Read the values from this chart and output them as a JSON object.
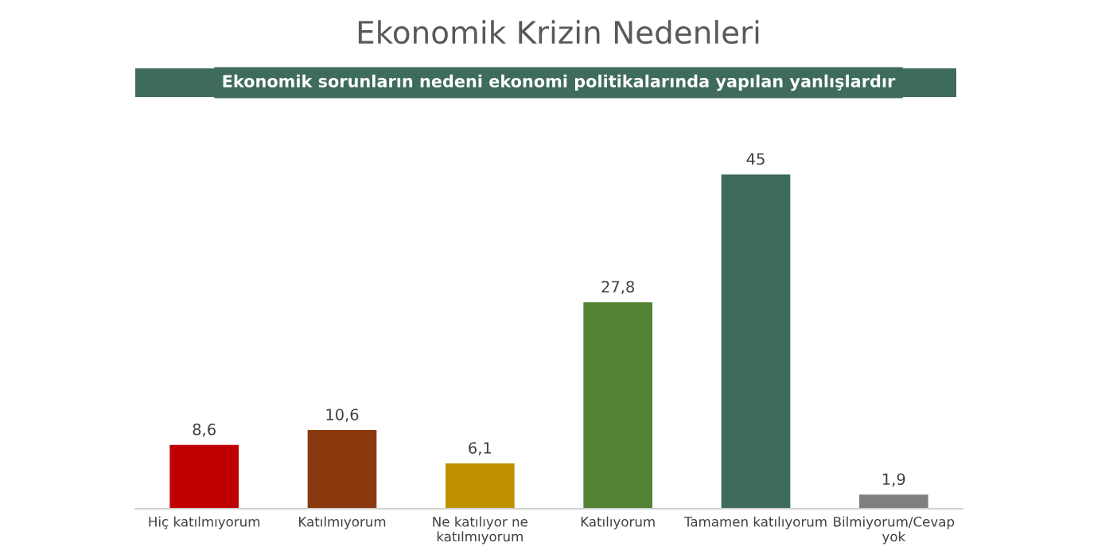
{
  "chart_data": {
    "type": "bar",
    "title": "Ekonomik Krizin Nedenleri",
    "subtitle": "Ekonomik sorunların nedeni ekonomi politikalarında yapılan yanlışlardır",
    "categories": [
      "Hiç katılmıyorum",
      "Katılmıyorum",
      "Ne katılıyor ne\nkatılmıyorum",
      "Katılıyorum",
      "Tamamen katılıyorum",
      "Bilmiyorum/Cevap\nyok"
    ],
    "values": [
      8.6,
      10.6,
      6.1,
      27.8,
      45,
      1.9
    ],
    "colors": [
      "#c00000",
      "#8b3a0f",
      "#bf9000",
      "#548235",
      "#3e6b5c",
      "#7f7f7f"
    ],
    "value_labels": [
      "8,6",
      "10,6",
      "6,1",
      "27,8",
      "45",
      "1,9"
    ],
    "grid": false,
    "legend": false
  }
}
